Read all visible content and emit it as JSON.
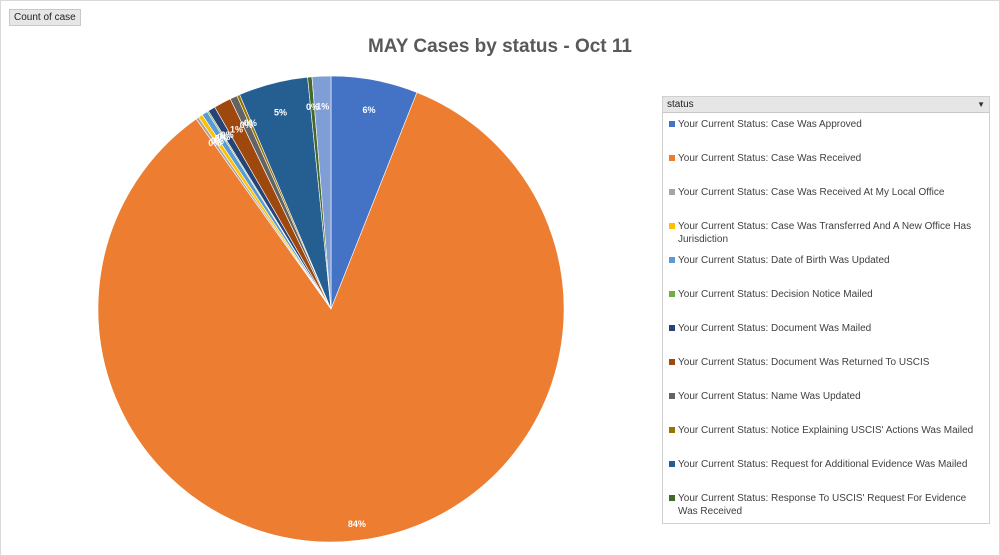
{
  "field_button": {
    "label": "Count of case"
  },
  "legend": {
    "header": "status",
    "dropdown_icon": "dropdown-arrow-icon"
  },
  "chart_data": {
    "type": "pie",
    "title": "MAY Cases by status - Oct 11",
    "start_angle_deg": 0,
    "direction": "clockwise",
    "slices": [
      {
        "name": "Your Current Status: Case Was Approved",
        "value": 6,
        "label": "6%",
        "color": "#4472c4"
      },
      {
        "name": "Your Current Status: Case Was Received",
        "value": 84,
        "label": "84%",
        "color": "#ed7d31"
      },
      {
        "name": "Your Current Status: Case Was Received At My Local Office",
        "value": 0.2,
        "label": "0%",
        "color": "#a5a5a5"
      },
      {
        "name": "Your Current Status: Case Was Transferred And A New Office Has Jurisdiction",
        "value": 0.3,
        "label": "0%",
        "color": "#ffc000"
      },
      {
        "name": "Your Current Status: Date of Birth Was Updated",
        "value": 0.4,
        "label": "0%",
        "color": "#5b9bd5"
      },
      {
        "name": "Your Current Status: Decision Notice Mailed",
        "value": 0.1,
        "label": "0%",
        "color": "#70ad47"
      },
      {
        "name": "Your Current Status: Document Was Mailed",
        "value": 0.5,
        "label": "0%",
        "color": "#264478"
      },
      {
        "name": "Your Current Status: Document Was Returned To USCIS",
        "value": 1.2,
        "label": "1%",
        "color": "#9e480e"
      },
      {
        "name": "Your Current Status: Name Was Updated",
        "value": 0.5,
        "label": "0%",
        "color": "#636363"
      },
      {
        "name": "Your Current Status: Notice Explaining USCIS' Actions Was Mailed",
        "value": 0.2,
        "label": "0%",
        "color": "#997300"
      },
      {
        "name": "Your Current Status: Request for Additional Evidence Was Mailed",
        "value": 4.8,
        "label": "5%",
        "color": "#255e91"
      },
      {
        "name": "Your Current Status: Response To USCIS' Request For Evidence Was Received",
        "value": 0.3,
        "label": "0%",
        "color": "#43682b"
      },
      {
        "name": "",
        "value": 1.3,
        "label": "1%",
        "color": "#7f9ed6"
      }
    ]
  }
}
